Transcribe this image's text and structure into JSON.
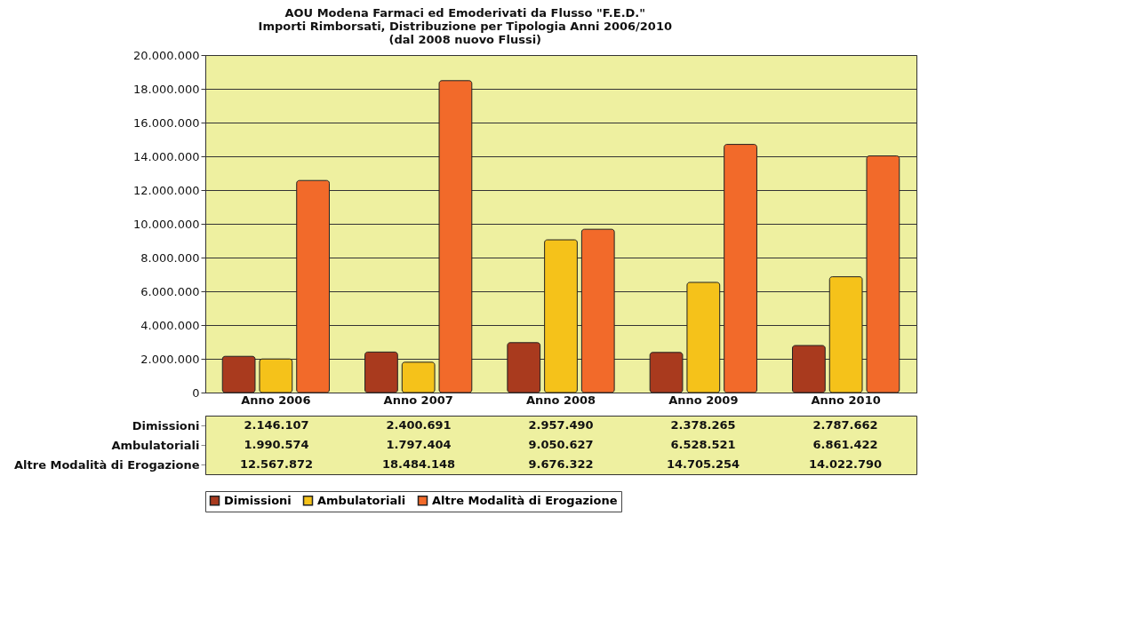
{
  "chart_data": {
    "type": "bar",
    "title": "AOU Modena Farmaci ed Emoderivati da Flusso \"F.E.D.\"\nImporti Rimborsati, Distribuzione per Tipologia Anni 2006/2010\n(dal 2008 nuovo Flussi)",
    "categories": [
      "Anno 2006",
      "Anno 2007",
      "Anno 2008",
      "Anno 2009",
      "Anno 2010"
    ],
    "series": [
      {
        "name": "Dimissioni",
        "color": "#a93a1e",
        "values": [
          2146107,
          2400691,
          2957490,
          2378265,
          2787662
        ],
        "value_labels": [
          "2.146.107",
          "2.400.691",
          "2.957.490",
          "2.378.265",
          "2.787.662"
        ]
      },
      {
        "name": "Ambulatoriali",
        "color": "#f5c21a",
        "values": [
          1990574,
          1797404,
          9050627,
          6528521,
          6861422
        ],
        "value_labels": [
          "1.990.574",
          "1.797.404",
          "9.050.627",
          "6.528.521",
          "6.861.422"
        ]
      },
      {
        "name": "Altre Modalità di Erogazione",
        "color": "#f26a2a",
        "values": [
          12567872,
          18484148,
          9676322,
          14705254,
          14022790
        ],
        "value_labels": [
          "12.567.872",
          "18.484.148",
          "9.676.322",
          "14.705.254",
          "14.022.790"
        ]
      }
    ],
    "ylim": [
      0,
      20000000
    ],
    "yticks": [
      {
        "value": 0,
        "label": "0"
      },
      {
        "value": 2000000,
        "label": "2.000.000"
      },
      {
        "value": 4000000,
        "label": "4.000.000"
      },
      {
        "value": 6000000,
        "label": "6.000.000"
      },
      {
        "value": 8000000,
        "label": "8.000.000"
      },
      {
        "value": 10000000,
        "label": "10.000.000"
      },
      {
        "value": 12000000,
        "label": "12.000.000"
      },
      {
        "value": 14000000,
        "label": "14.000.000"
      },
      {
        "value": 16000000,
        "label": "16.000.000"
      },
      {
        "value": 18000000,
        "label": "18.000.000"
      },
      {
        "value": 20000000,
        "label": "20.000.000"
      }
    ],
    "grid": "y",
    "legend": "bottom"
  }
}
